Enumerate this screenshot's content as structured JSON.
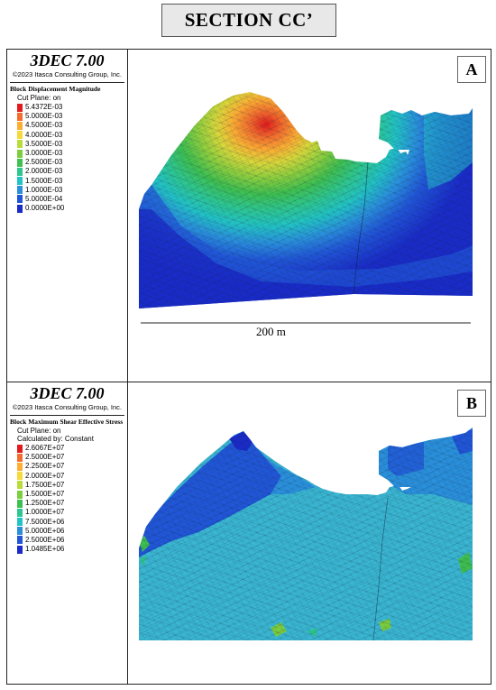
{
  "header": {
    "title": "SECTION CC’"
  },
  "panels": [
    {
      "letter": "A",
      "brand": "3DEC 7.00",
      "copyright": "©2023 Itasca Consulting Group, Inc.",
      "variable": "Block  Displacement Magnitude",
      "options": [
        "Cut Plane: on"
      ],
      "legend": [
        {
          "label": "5.4372E-03",
          "color": "#e31a1c"
        },
        {
          "label": "5.0000E-03",
          "color": "#f46d2d"
        },
        {
          "label": "4.5000E-03",
          "color": "#fdae33"
        },
        {
          "label": "4.0000E-03",
          "color": "#f6d93a"
        },
        {
          "label": "3.5000E-03",
          "color": "#b9dc3c"
        },
        {
          "label": "3.0000E-03",
          "color": "#7ccd3f"
        },
        {
          "label": "2.5000E-03",
          "color": "#3fc050"
        },
        {
          "label": "2.0000E-03",
          "color": "#2ec790"
        },
        {
          "label": "1.5000E-03",
          "color": "#22c3c6"
        },
        {
          "label": "1.0000E-03",
          "color": "#2a90dc"
        },
        {
          "label": "5.0000E-04",
          "color": "#2156d8"
        },
        {
          "label": "0.0000E+00",
          "color": "#1a2bc9"
        }
      ],
      "scale_label": "200 m"
    },
    {
      "letter": "B",
      "brand": "3DEC 7.00",
      "copyright": "©2023 Itasca Consulting Group, Inc.",
      "variable": "Block  Maximum Shear Effective Stress",
      "options": [
        "Cut Plane: on",
        "Calculated by: Constant"
      ],
      "legend": [
        {
          "label": "2.6067E+07",
          "color": "#e31a1c"
        },
        {
          "label": "2.5000E+07",
          "color": "#f46d2d"
        },
        {
          "label": "2.2500E+07",
          "color": "#fdae33"
        },
        {
          "label": "2.0000E+07",
          "color": "#f6d93a"
        },
        {
          "label": "1.7500E+07",
          "color": "#b9dc3c"
        },
        {
          "label": "1.5000E+07",
          "color": "#7ccd3f"
        },
        {
          "label": "1.2500E+07",
          "color": "#3fc050"
        },
        {
          "label": "1.0000E+07",
          "color": "#2ec790"
        },
        {
          "label": "7.5000E+06",
          "color": "#22c3c6"
        },
        {
          "label": "5.0000E+06",
          "color": "#2a90dc"
        },
        {
          "label": "2.5000E+06",
          "color": "#2156d8"
        },
        {
          "label": "1.0485E+06",
          "color": "#1a2bc9"
        }
      ]
    }
  ]
}
